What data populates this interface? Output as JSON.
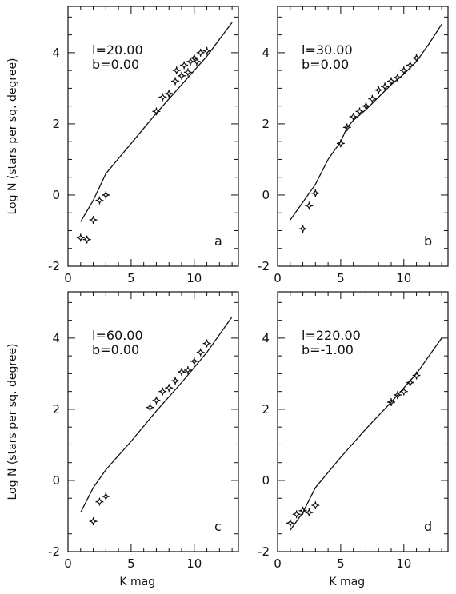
{
  "chart_data": [
    {
      "type": "line",
      "panel_letter": "a",
      "annotation": [
        "l=20.00",
        "b=0.00"
      ],
      "xlabel": "",
      "ylabel": "Log N (stars per sq. degree)",
      "xlim": [
        0,
        13.5
      ],
      "ylim": [
        -2,
        5.3
      ],
      "xticks": [
        "0",
        "5",
        "10"
      ],
      "yticks": [
        "-2",
        "0",
        "2",
        "4"
      ],
      "series": [
        {
          "kind": "line",
          "x": [
            1.0,
            2.0,
            3.0,
            5.0,
            7.0,
            9.0,
            11.0,
            13.0
          ],
          "y": [
            -0.75,
            -0.15,
            0.6,
            1.45,
            2.3,
            3.1,
            3.9,
            4.85
          ]
        },
        {
          "kind": "points",
          "x": [
            1.0,
            1.5,
            2.0,
            2.5,
            3.0,
            7.0,
            7.5,
            8.0,
            8.5,
            8.6,
            9.0,
            9.2,
            9.5,
            9.7,
            10.0,
            10.2,
            10.5,
            11.0
          ],
          "y": [
            -1.2,
            -1.25,
            -0.7,
            -0.15,
            0.0,
            2.35,
            2.75,
            2.85,
            3.2,
            3.5,
            3.35,
            3.65,
            3.45,
            3.75,
            3.85,
            3.75,
            4.0,
            4.05
          ]
        }
      ]
    },
    {
      "type": "line",
      "panel_letter": "b",
      "annotation": [
        "l=30.00",
        "b=0.00"
      ],
      "xlabel": "",
      "ylabel": "",
      "xlim": [
        0,
        13.5
      ],
      "ylim": [
        -2,
        5.3
      ],
      "xticks": [
        "0",
        "5",
        "10"
      ],
      "yticks": [
        "-2",
        "0",
        "2",
        "4"
      ],
      "series": [
        {
          "kind": "line",
          "x": [
            1.0,
            2.0,
            3.0,
            4.0,
            5.0,
            5.5,
            6.0,
            7.0,
            8.0,
            9.0,
            10.0,
            11.0,
            12.0,
            13.0
          ],
          "y": [
            -0.7,
            -0.2,
            0.3,
            1.0,
            1.5,
            1.9,
            2.1,
            2.4,
            2.75,
            3.1,
            3.4,
            3.75,
            4.25,
            4.8
          ]
        },
        {
          "kind": "points",
          "x": [
            2.0,
            2.5,
            3.0,
            5.0,
            5.5,
            6.0,
            6.5,
            7.0,
            7.5,
            8.0,
            8.5,
            9.0,
            9.5,
            10.0,
            10.5,
            11.0
          ],
          "y": [
            -0.95,
            -0.3,
            0.05,
            1.45,
            1.9,
            2.2,
            2.35,
            2.5,
            2.7,
            2.95,
            3.05,
            3.2,
            3.3,
            3.5,
            3.65,
            3.85
          ]
        }
      ]
    },
    {
      "type": "line",
      "panel_letter": "c",
      "annotation": [
        "l=60.00",
        "b=0.00"
      ],
      "xlabel": "K mag",
      "ylabel": "Log N (stars per sq. degree)",
      "xlim": [
        0,
        13.5
      ],
      "ylim": [
        -2,
        5.3
      ],
      "xticks": [
        "0",
        "5",
        "10"
      ],
      "yticks": [
        "-2",
        "0",
        "2",
        "4"
      ],
      "series": [
        {
          "kind": "line",
          "x": [
            1.0,
            2.0,
            3.0,
            5.0,
            7.0,
            9.0,
            11.0,
            13.0
          ],
          "y": [
            -0.9,
            -0.2,
            0.3,
            1.1,
            1.95,
            2.75,
            3.6,
            4.6
          ]
        },
        {
          "kind": "points",
          "x": [
            2.0,
            2.5,
            3.0,
            6.5,
            7.0,
            7.5,
            8.0,
            8.5,
            9.0,
            9.5,
            10.0,
            10.5,
            11.0
          ],
          "y": [
            -1.15,
            -0.6,
            -0.45,
            2.05,
            2.25,
            2.5,
            2.6,
            2.8,
            3.05,
            3.1,
            3.35,
            3.6,
            3.85
          ]
        }
      ]
    },
    {
      "type": "line",
      "panel_letter": "d",
      "annotation": [
        "l=220.00",
        "b=-1.00"
      ],
      "xlabel": "K mag",
      "ylabel": "",
      "xlim": [
        0,
        13.5
      ],
      "ylim": [
        -2,
        5.3
      ],
      "xticks": [
        "0",
        "5",
        "10"
      ],
      "yticks": [
        "-2",
        "0",
        "2",
        "4"
      ],
      "series": [
        {
          "kind": "line",
          "x": [
            1.0,
            2.0,
            3.0,
            5.0,
            7.0,
            9.0,
            11.0,
            12.5,
            13.0
          ],
          "y": [
            -1.4,
            -0.9,
            -0.2,
            0.65,
            1.45,
            2.2,
            3.0,
            3.75,
            4.0
          ]
        },
        {
          "kind": "points",
          "x": [
            1.0,
            1.5,
            2.0,
            2.5,
            3.0,
            9.0,
            9.5,
            10.0,
            10.5,
            11.0
          ],
          "y": [
            -1.2,
            -0.95,
            -0.85,
            -0.9,
            -0.7,
            2.2,
            2.4,
            2.5,
            2.75,
            2.95
          ]
        }
      ]
    }
  ]
}
